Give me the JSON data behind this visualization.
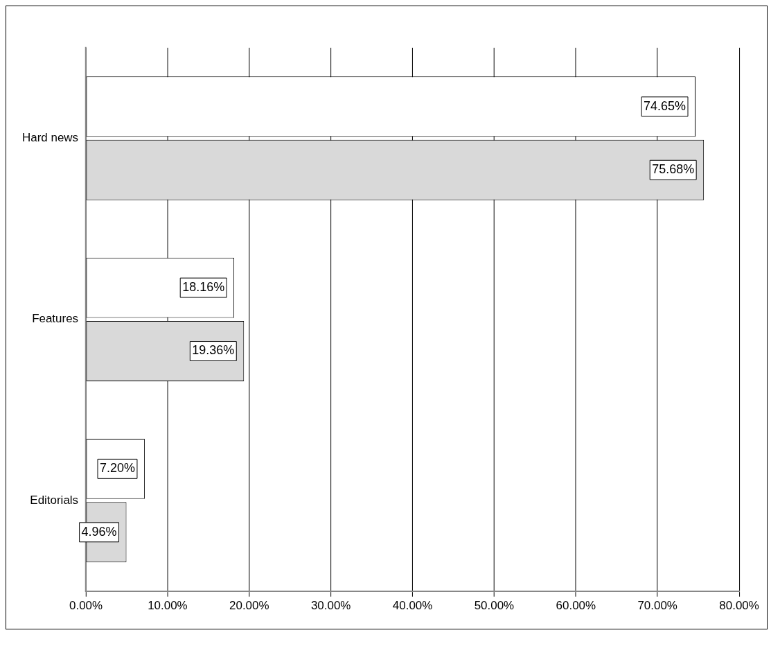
{
  "chart_data": {
    "type": "bar",
    "orientation": "horizontal",
    "categories": [
      "Hard news",
      "Features",
      "Editorials"
    ],
    "series": [
      {
        "color": "#ffffff",
        "values": [
          74.65,
          18.16,
          7.2
        ],
        "value_labels": [
          "74.65%",
          "18.16%",
          "7.20%"
        ]
      },
      {
        "color": "#d9d9d9",
        "values": [
          75.68,
          19.36,
          4.96
        ],
        "value_labels": [
          "75.68%",
          "19.36%",
          "4.96%"
        ]
      }
    ],
    "xlim": [
      0,
      80
    ],
    "xticks": [
      {
        "value": 0,
        "label": "0.00%"
      },
      {
        "value": 10,
        "label": "10.00%"
      },
      {
        "value": 20,
        "label": "20.00%"
      },
      {
        "value": 30,
        "label": "30.00%"
      },
      {
        "value": 40,
        "label": "40.00%"
      },
      {
        "value": 50,
        "label": "50.00%"
      },
      {
        "value": 60,
        "label": "60.00%"
      },
      {
        "value": 70,
        "label": "70.00%"
      },
      {
        "value": 80,
        "label": "80.00%"
      }
    ],
    "grid": "x"
  }
}
